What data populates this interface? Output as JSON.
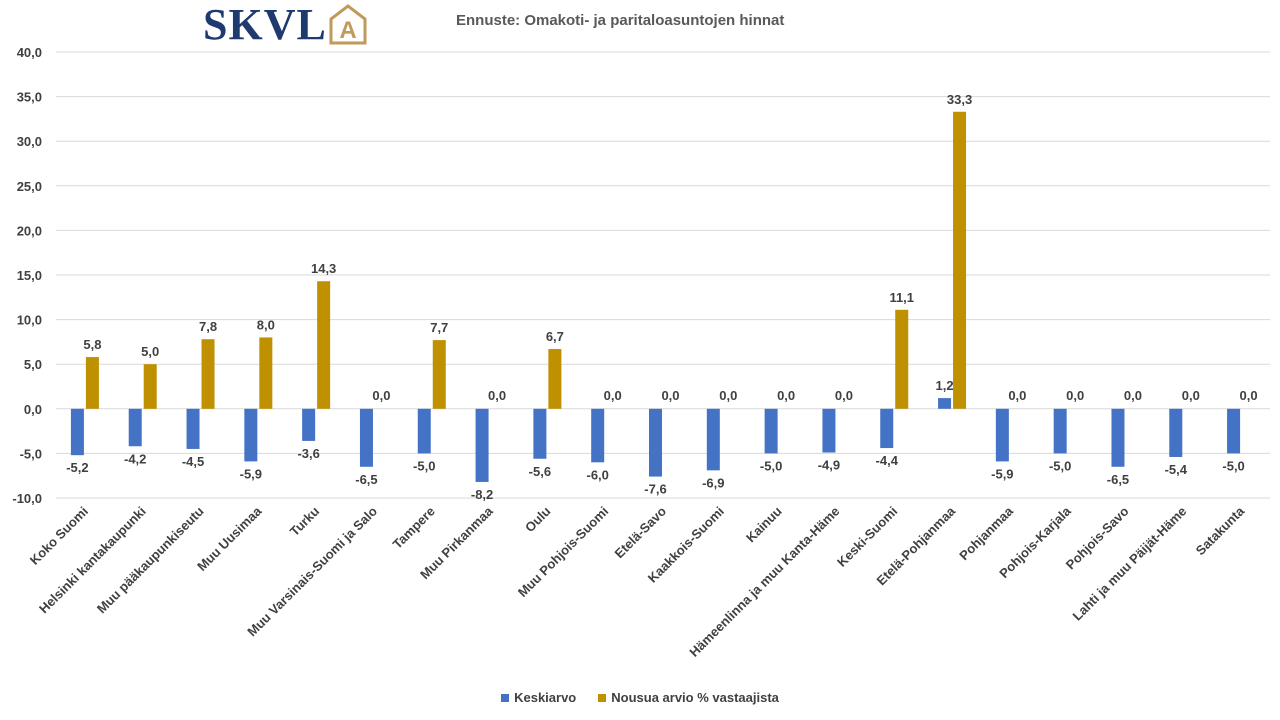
{
  "logo": {
    "text": "SKVL",
    "badge": "A"
  },
  "chart_data": {
    "type": "bar",
    "title": "Ennuste: Omakoti- ja paritaloasuntojen hinnat",
    "xlabel": "",
    "ylabel": "",
    "ylim": [
      -10,
      40
    ],
    "yticks": [
      -10,
      -5,
      0,
      5,
      10,
      15,
      20,
      25,
      30,
      35,
      40
    ],
    "grid": true,
    "legend_position": "bottom",
    "categories": [
      "Koko Suomi",
      "Helsinki kantakaupunki",
      "Muu pääkaupunkiseutu",
      "Muu Uusimaa",
      "Turku",
      "Muu Varsinais-Suomi ja Salo",
      "Tampere",
      "Muu Pirkanmaa",
      "Oulu",
      "Muu Pohjois-Suomi",
      "Etelä-Savo",
      "Kaakkois-Suomi",
      "Kainuu",
      "Hämeenlinna ja muu Kanta-Häme",
      "Keski-Suomi",
      "Etelä-Pohjanmaa",
      "Pohjanmaa",
      "Pohjois-Karjala",
      "Pohjois-Savo",
      "Lahti ja muu Päijät-Häme",
      "Satakunta"
    ],
    "series": [
      {
        "name": "Keskiarvo",
        "color": "#4472c4",
        "values": [
          -5.2,
          -4.2,
          -4.5,
          -5.9,
          -3.6,
          -6.5,
          -5.0,
          -8.2,
          -5.6,
          -6.0,
          -7.6,
          -6.9,
          -5.0,
          -4.9,
          -4.4,
          1.2,
          -5.9,
          -5.0,
          -6.5,
          -5.4,
          -5.0
        ]
      },
      {
        "name": "Nousua arvio % vastaajista",
        "color": "#bf9000",
        "values": [
          5.8,
          5.0,
          7.8,
          8.0,
          14.3,
          0.0,
          7.7,
          0.0,
          6.7,
          0.0,
          0.0,
          0.0,
          0.0,
          0.0,
          11.1,
          33.3,
          0.0,
          0.0,
          0.0,
          0.0,
          0.0
        ]
      }
    ]
  }
}
